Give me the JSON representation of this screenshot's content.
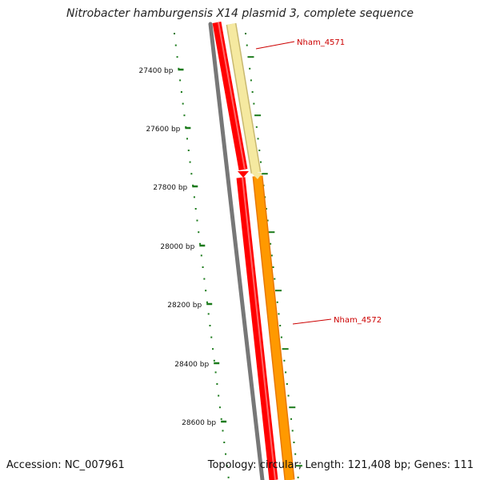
{
  "title": "Nitrobacter hamburgensis X14 plasmid 3, complete sequence",
  "footer": {
    "accession": "Accession: NC_007961",
    "summary": "Topology: circular; Length: 121,408 bp; Genes: 111"
  },
  "ruler": {
    "tick_labels": [
      "27400 bp",
      "27600 bp",
      "27800 bp",
      "28000 bp",
      "28200 bp",
      "28400 bp",
      "28600 bp"
    ],
    "color": "#1a7a1a"
  },
  "features": [
    {
      "name": "Nham_4571",
      "label_color": "#cc0000",
      "fill": "#f5e9a0",
      "edge": "#c8b870"
    },
    {
      "name": "Nham_4572",
      "label_color": "#cc0000",
      "fill": "#ff9900",
      "edge": "#e87800"
    }
  ],
  "tracks": {
    "backbone_color": "#777777",
    "cds_color": "#ff0000"
  }
}
